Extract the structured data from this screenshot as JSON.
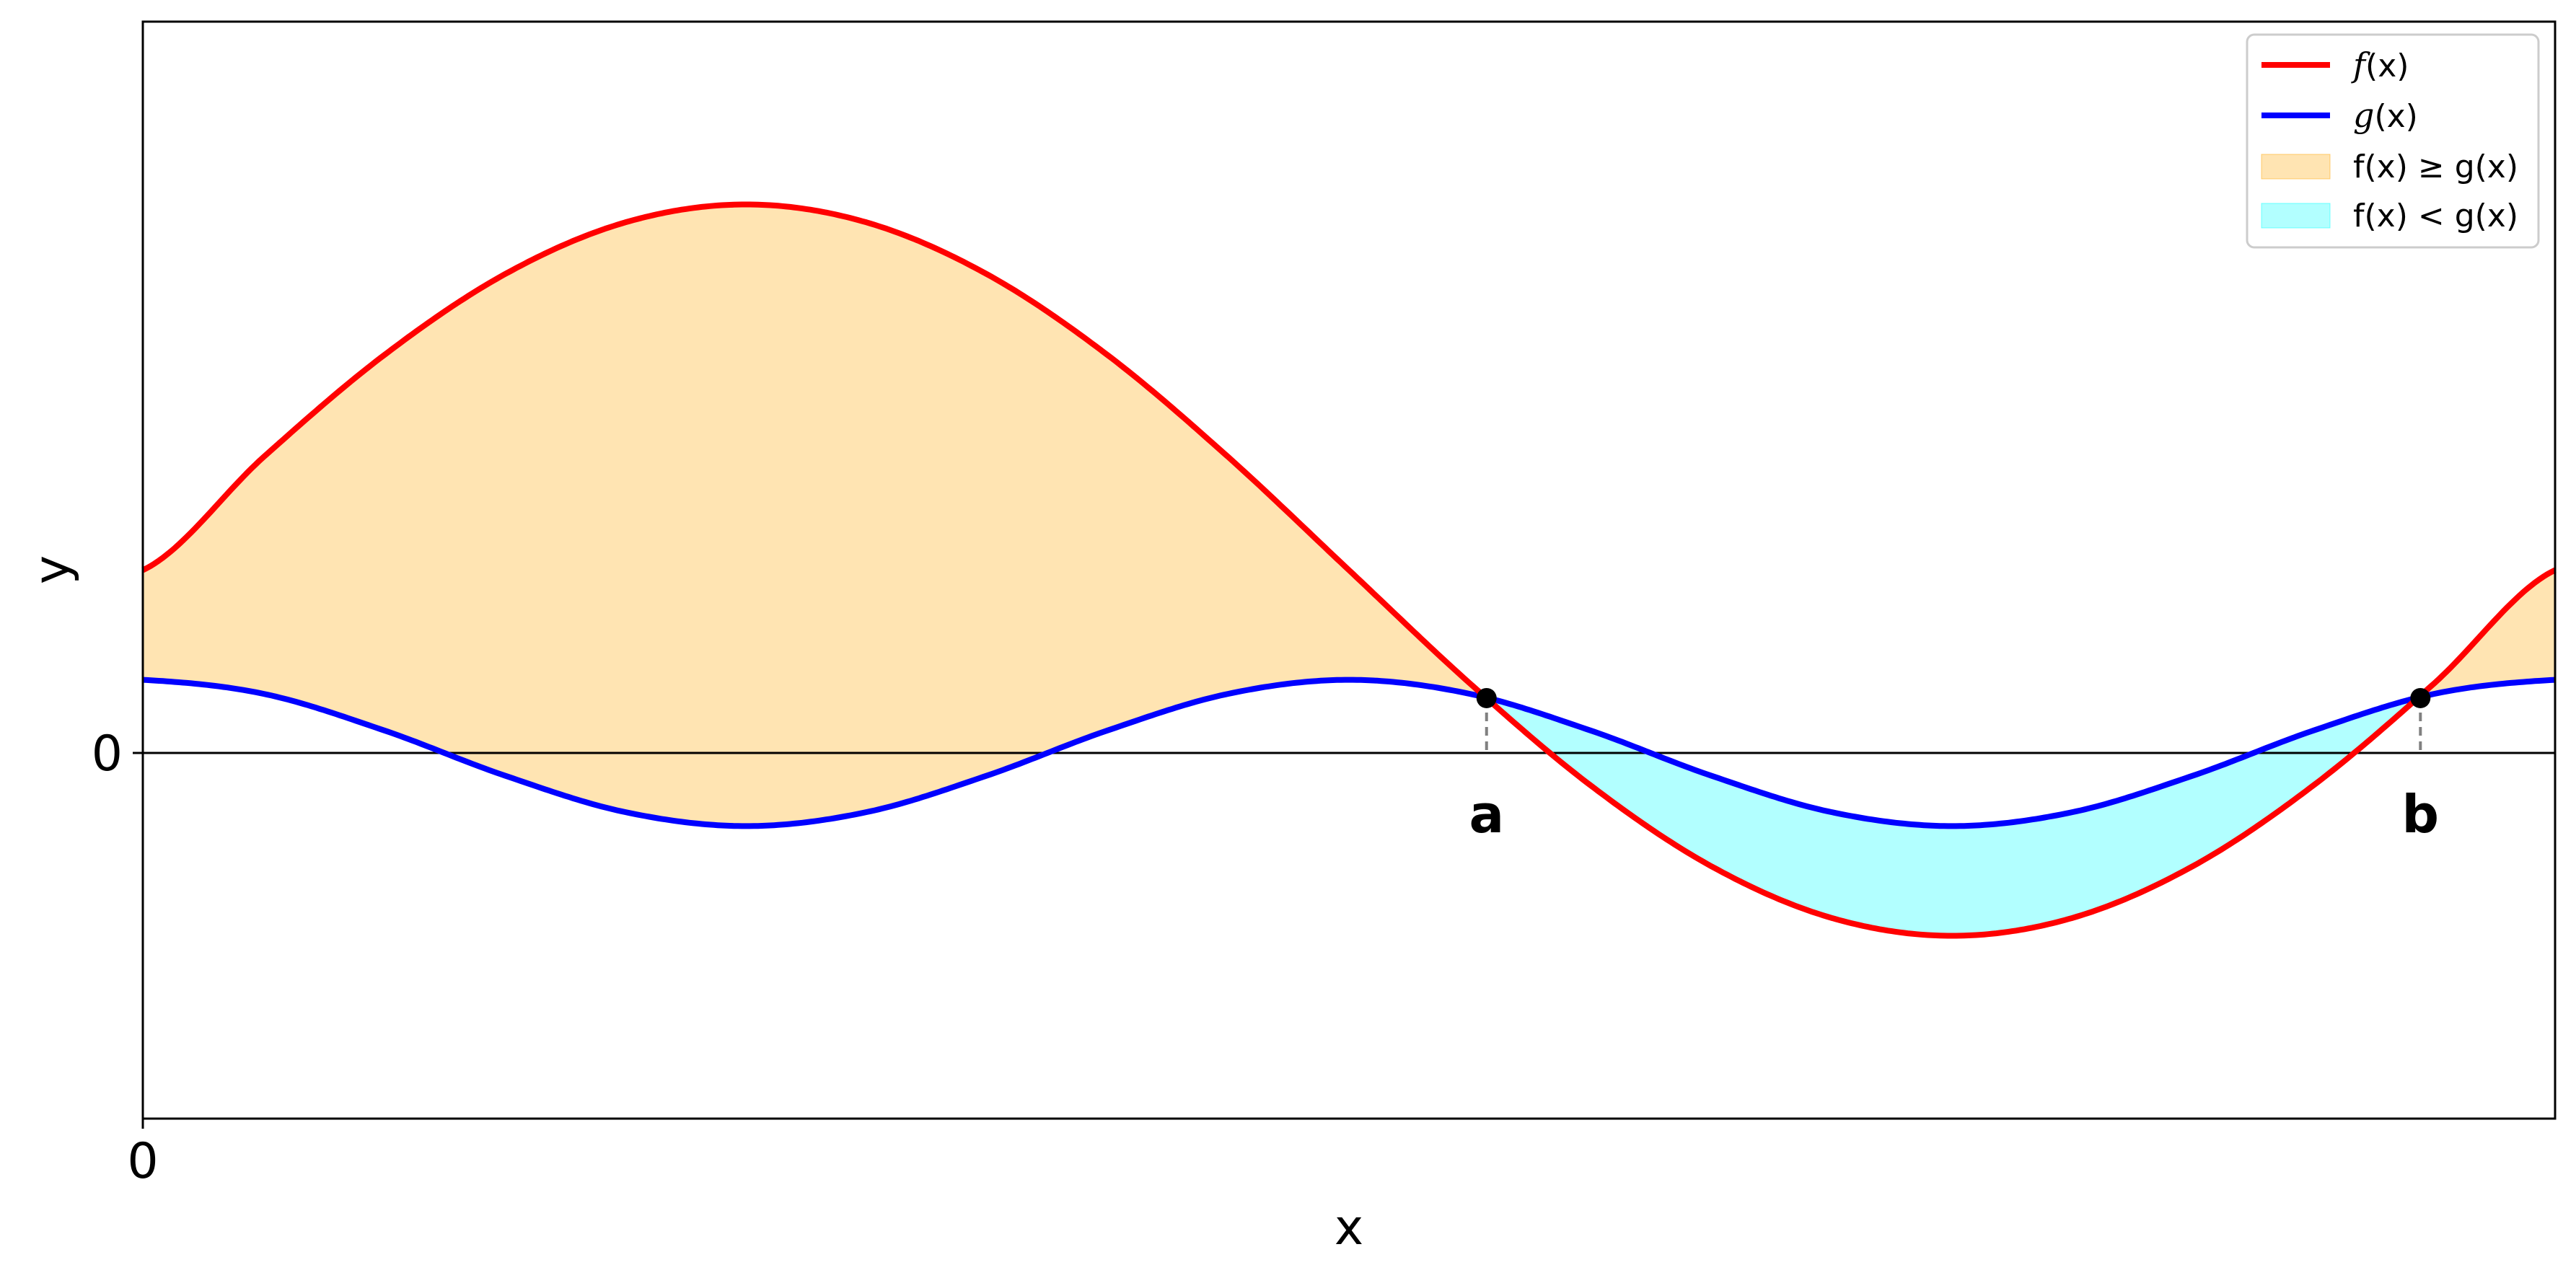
{
  "chart_data": {
    "type": "area",
    "title": "",
    "xlabel": "x",
    "ylabel": "y",
    "xlim": [
      0,
      6.2832
    ],
    "ylim": [
      -1.0,
      2.0
    ],
    "xticks": [
      {
        "value": 0,
        "label": "0"
      }
    ],
    "yticks": [
      {
        "value": 0,
        "label": "0"
      }
    ],
    "grid": false,
    "legend_position": "top-right",
    "x": [
      0.0,
      0.3142,
      0.6283,
      0.9425,
      1.2566,
      1.5708,
      1.885,
      2.1991,
      2.5133,
      2.8274,
      3.1416,
      3.4558,
      3.7699,
      4.0841,
      4.3982,
      4.7124,
      5.0265,
      5.3407,
      5.6549,
      5.969,
      6.2832
    ],
    "series": [
      {
        "name": "f(x)",
        "color": "#ff0000",
        "values": [
          0.5,
          0.809,
          1.0878,
          1.309,
          1.451,
          1.5,
          1.451,
          1.309,
          1.0878,
          0.809,
          0.5,
          0.191,
          -0.0878,
          -0.309,
          -0.451,
          -0.5,
          -0.451,
          -0.309,
          -0.0878,
          0.191,
          0.5
        ]
      },
      {
        "name": "g(x)",
        "color": "#0000ff",
        "values": [
          0.2,
          0.1618,
          0.0618,
          -0.0618,
          -0.1618,
          -0.2,
          -0.1618,
          -0.0618,
          0.0618,
          0.1618,
          0.2,
          0.1618,
          0.0618,
          -0.0618,
          -0.1618,
          -0.2,
          -0.1618,
          -0.0618,
          0.0618,
          0.1618,
          0.2
        ]
      }
    ],
    "fills": [
      {
        "name": "f(x) ≥ g(x)",
        "color": "#ffa500",
        "opacity": 0.3
      },
      {
        "name": "f(x) < g(x)",
        "color": "#00ffff",
        "opacity": 0.3
      }
    ],
    "annotations": [
      {
        "label": "a",
        "x": 3.5,
        "y": 0.15
      },
      {
        "label": "b",
        "x": 5.9324,
        "y": 0.15
      }
    ]
  },
  "legend": {
    "f_prefix": "f",
    "g_prefix": "g",
    "arg": "(x)"
  }
}
